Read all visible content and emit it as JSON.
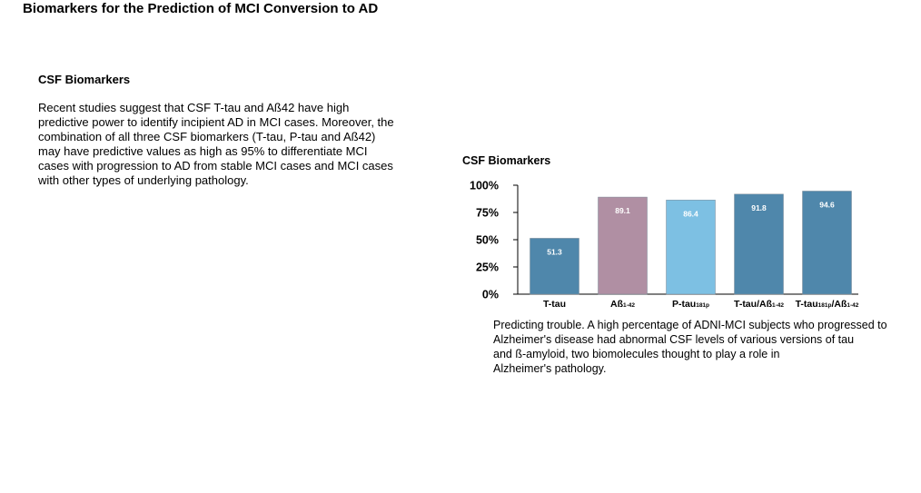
{
  "page": {
    "title": "Biomarkers for the Prediction of MCI Conversion to AD"
  },
  "section": {
    "heading": "CSF Biomarkers",
    "body": "Recent studies suggest that CSF T-tau and Aß42 have high\npredictive power to identify incipient AD in MCI cases. Moreover, the\ncombination of all three CSF biomarkers (T-tau, P-tau and Aß42)\nmay have predictive values as high as 95% to differentiate MCI\ncases with progression to AD from stable MCI cases and MCI cases\nwith other types of underlying pathology."
  },
  "caption": {
    "text": "Predicting trouble.  A high percentage of ADNI-MCI subjects who progressed to\nAlzheimer's disease had abnormal CSF levels of various versions of tau\nand ß-amyloid, two biomolecules thought to play a role in\nAlzheimer's pathology."
  },
  "chart_data": {
    "type": "bar",
    "title": "CSF Biomarkers",
    "xlabel": "",
    "ylabel": "",
    "ylim": [
      0,
      100
    ],
    "yticks": [
      0,
      25,
      50,
      75,
      100
    ],
    "ytick_labels": [
      "0%",
      "25%",
      "50%",
      "75%",
      "100%"
    ],
    "grid": false,
    "categories": [
      {
        "main": "T-tau",
        "sub": ""
      },
      {
        "main": "Aß",
        "sub": "1-42"
      },
      {
        "main": "P-tau",
        "sub": "181p"
      },
      {
        "main": "T-tau/Aß",
        "sub": "1-42"
      },
      {
        "main": "T-tau",
        "sub": "181p",
        "main2": "/Aß",
        "sub2": "1-42"
      }
    ],
    "values": [
      51.3,
      89.1,
      86.4,
      91.8,
      94.6
    ],
    "data_labels": [
      "51.3",
      "89.1",
      "86.4",
      "91.8",
      "94.6"
    ],
    "colors": [
      "#4f87ab",
      "#b08fa3",
      "#7dc0e3",
      "#4f87ab",
      "#4f87ab"
    ]
  }
}
